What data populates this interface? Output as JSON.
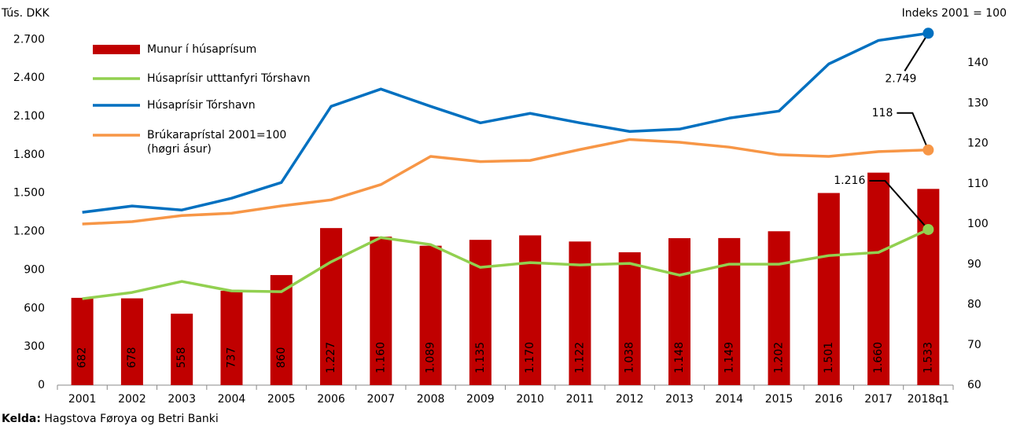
{
  "chart_data": {
    "type": "combo",
    "y_label": "Tús. DKK",
    "y2_label": "Indeks 2001 = 100",
    "categories": [
      "2001",
      "2002",
      "2003",
      "2004",
      "2005",
      "2006",
      "2007",
      "2008",
      "2009",
      "2010",
      "2011",
      "2012",
      "2013",
      "2014",
      "2015",
      "2016",
      "2017",
      "2018q1"
    ],
    "series": [
      {
        "name": "Munur í húsaprísum",
        "type": "bar",
        "color": "#c00000",
        "values": [
          682,
          678,
          558,
          737,
          860,
          1227,
          1160,
          1089,
          1135,
          1170,
          1122,
          1038,
          1148,
          1149,
          1202,
          1501,
          1660,
          1533
        ],
        "value_labels": [
          "682",
          "678",
          "558",
          "737",
          "860",
          "1.227",
          "1.160",
          "1.089",
          "1.135",
          "1.170",
          "1.122",
          "1.038",
          "1.148",
          "1.149",
          "1.202",
          "1.501",
          "1.660",
          "1.533"
        ]
      },
      {
        "name": "Húsaprísir utttanfyri Tórshavn",
        "type": "line",
        "color": "#92d050",
        "values": [
          675,
          724,
          810,
          736,
          730,
          963,
          1153,
          1098,
          920,
          957,
          939,
          951,
          859,
          945,
          945,
          1012,
          1037,
          1216
        ]
      },
      {
        "name": "Húsaprísir Tórshavn",
        "type": "line",
        "color": "#0070c0",
        "values": [
          1350,
          1399,
          1368,
          1460,
          1583,
          2178,
          2313,
          2178,
          2049,
          2123,
          2049,
          1982,
          2000,
          2086,
          2141,
          2509,
          2693,
          2749
        ]
      },
      {
        "name": "Brúkaraprístal 2001=100\n(høgri ásur)",
        "type": "line",
        "color": "#f79646",
        "axis": "y2",
        "values": [
          100,
          100.6,
          102.1,
          102.7,
          104.5,
          106,
          109.8,
          116.8,
          115.5,
          115.8,
          118.5,
          121,
          120.3,
          119.1,
          117.2,
          116.8,
          118,
          118.4
        ]
      }
    ],
    "annotations": [
      {
        "series": 2,
        "text": "2.749"
      },
      {
        "series": 3,
        "text": "118"
      },
      {
        "series": 1,
        "text": "1.216"
      }
    ],
    "ylim": [
      0,
      2800
    ],
    "yticks": [
      0,
      300,
      600,
      900,
      {
        "value": 1200,
        "label": "1.200"
      },
      {
        "value": 1500,
        "label": "1.500"
      },
      {
        "value": 1800,
        "label": "1.800"
      },
      {
        "value": 2100,
        "label": "2.100"
      },
      {
        "value": 2400,
        "label": "2.400"
      },
      {
        "value": 2700,
        "label": "2.700"
      }
    ],
    "y2lim": [
      60,
      149
    ],
    "y2ticks": [
      60,
      70,
      80,
      90,
      100,
      110,
      120,
      130,
      140
    ],
    "legend": "upper-left",
    "source": {
      "label": "Kelda:",
      "text": "Hagstova Føroya og Betri Banki"
    }
  }
}
